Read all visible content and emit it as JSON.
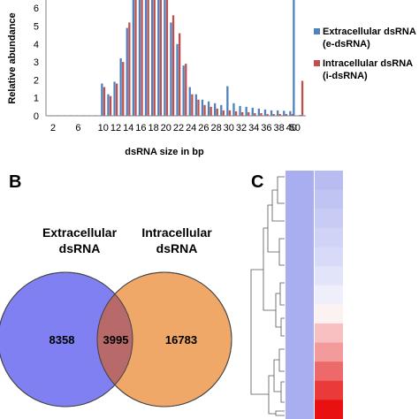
{
  "chart_data": [
    {
      "type": "bar",
      "ylabel": "Relative abundance",
      "xlabel": "dsRNA size in bp",
      "ylim": [
        0,
        6.6
      ],
      "yticks": [
        0,
        1,
        2,
        3,
        4,
        5,
        6
      ],
      "xtick_labels": [
        "2",
        "6",
        "10",
        "12",
        "14",
        "16",
        "18",
        "20",
        "22",
        "24",
        "26",
        "28",
        "30",
        "32",
        "34",
        "36",
        "38",
        "40",
        "50"
      ],
      "categories": [
        2,
        3,
        4,
        5,
        6,
        7,
        8,
        9,
        10,
        11,
        12,
        13,
        14,
        15,
        16,
        17,
        18,
        19,
        20,
        21,
        22,
        23,
        24,
        25,
        26,
        27,
        28,
        29,
        30,
        31,
        32,
        33,
        34,
        35,
        36,
        37,
        38,
        39,
        40,
        50,
        51
      ],
      "series": [
        {
          "name_line1": "Extracellular dsRNA",
          "name_line2": "(e-dsRNA)",
          "color": "#4f81bd",
          "values": [
            0.03,
            0.03,
            0.03,
            0.03,
            0.03,
            0.03,
            0.03,
            0.03,
            1.8,
            1.2,
            1.9,
            3.2,
            4.9,
            6.6,
            6.6,
            6.6,
            6.6,
            6.6,
            6.6,
            5.2,
            4.0,
            2.8,
            1.6,
            1.2,
            0.9,
            0.8,
            0.7,
            0.6,
            1.65,
            0.7,
            0.55,
            0.5,
            0.45,
            0.4,
            0.35,
            0.3,
            0.3,
            0.28,
            0.26,
            6.6,
            0.05
          ]
        },
        {
          "name_line1": "Intracellular dsRNA",
          "name_line2": "(i-dsRNA)",
          "color": "#c0504d",
          "values": [
            0.0,
            0.0,
            0.0,
            0.0,
            0.0,
            0.0,
            0.0,
            0.0,
            1.6,
            1.1,
            1.8,
            3.0,
            5.2,
            6.6,
            6.6,
            6.6,
            6.6,
            6.6,
            6.6,
            5.6,
            4.6,
            2.9,
            1.2,
            0.9,
            0.6,
            0.5,
            0.4,
            0.3,
            0.3,
            0.25,
            0.2,
            0.2,
            0.15,
            0.15,
            0.1,
            0.1,
            0.1,
            0.1,
            0.1,
            0.0,
            1.95
          ]
        }
      ]
    },
    {
      "type": "venn",
      "panel": "B",
      "sets": [
        {
          "label_line1": "Extracellular",
          "label_line2": "dsRNA",
          "color": "#8080f2"
        },
        {
          "label_line1": "Intracellular",
          "label_line2": "dsRNA",
          "color": "#f0a868"
        }
      ],
      "counts": {
        "only_a": "8358",
        "both": "3995",
        "only_b": "16783"
      },
      "overlap_color": "#b86a6a"
    },
    {
      "type": "heatmap",
      "panel": "C",
      "column_a_color": "#a8aef0",
      "column_b_shades": [
        "#b8bcf0",
        "#c0c4f2",
        "#c8ccf4",
        "#d0d3f5",
        "#d8dbf7",
        "#e2e4f9",
        "#eeeffb",
        "#fdf2f2",
        "#f8c0c0",
        "#f39a9a",
        "#ee6a6a",
        "#ea3a3a",
        "#e81010"
      ]
    }
  ],
  "labels": {
    "panel_b": "B",
    "panel_c": "C"
  }
}
